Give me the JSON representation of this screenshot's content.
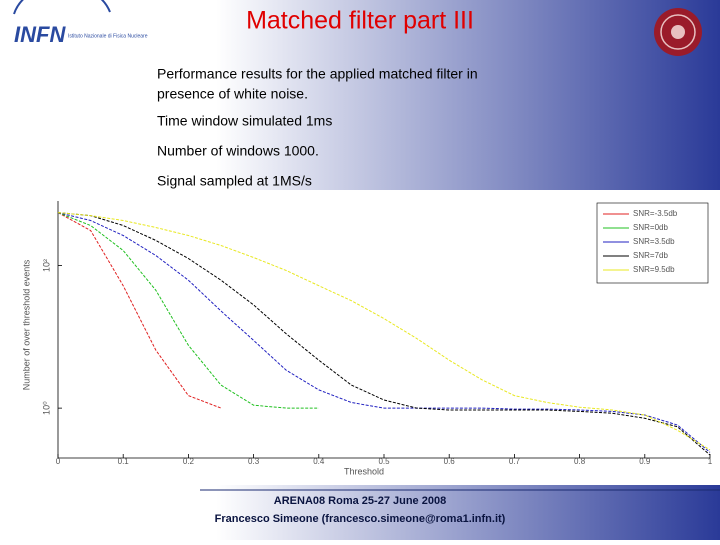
{
  "header": {
    "title": "Matched filter part III",
    "logo_text": "INFN",
    "logo_subtext": "Istituto Nazionale di Fisica Nucleare"
  },
  "body": {
    "lines": [
      "Performance results for the applied matched filter in",
      "presence of white noise.",
      "Time window simulated 1ms",
      "Number of windows 1000.",
      "Signal sampled at 1MS/s"
    ]
  },
  "footer": {
    "lines": [
      "ARENA08 Roma 25-27 June 2008",
      "Francesco Simeone (francesco.simeone@roma1.infn.it)"
    ]
  },
  "chart_data": {
    "type": "line",
    "xlabel": "Threshold",
    "ylabel": "Number of over threshold events",
    "x": [
      0,
      0.05,
      0.1,
      0.15,
      0.2,
      0.25,
      0.3,
      0.35,
      0.4,
      0.45,
      0.5,
      0.55,
      0.6,
      0.65,
      0.7,
      0.75,
      0.8,
      0.85,
      0.9,
      0.95,
      1
    ],
    "xlim": [
      0,
      1
    ],
    "xticks": [
      0,
      0.1,
      0.2,
      0.3,
      0.4,
      0.5,
      0.6,
      0.7,
      0.8,
      0.9,
      1
    ],
    "ylim": [
      0.2,
      800
    ],
    "yscale": "log",
    "yticks": [
      {
        "value": 1,
        "label": "10⁰"
      },
      {
        "value": 100,
        "label": "10²"
      }
    ],
    "grid": false,
    "legend": "upper right",
    "series": [
      {
        "name": "SNR=-3.5db",
        "color": "#e02020",
        "values": [
          551,
          309,
          52,
          6.5,
          1.5,
          1,
          null,
          null,
          null,
          null,
          null,
          null,
          null,
          null,
          null,
          null,
          null,
          null,
          null,
          null,
          null
        ]
      },
      {
        "name": "SNR=0db",
        "color": "#20c020",
        "values": [
          551,
          363,
          162,
          45,
          7.6,
          2.1,
          1.1,
          1,
          1,
          null,
          null,
          null,
          null,
          null,
          null,
          null,
          null,
          null,
          null,
          null,
          null
        ]
      },
      {
        "name": "SNR=3.5db",
        "color": "#2020c0",
        "values": [
          551,
          426,
          263,
          138,
          62,
          23,
          8.9,
          3.4,
          1.8,
          1.2,
          1,
          1,
          1,
          1,
          0.97,
          0.97,
          0.94,
          0.9,
          0.8,
          0.58,
          0.24
        ]
      },
      {
        "name": "SNR=7db",
        "color": "#000000",
        "values": [
          551,
          500,
          363,
          224,
          125,
          62,
          28,
          11,
          4.7,
          2.1,
          1.3,
          1,
          0.94,
          0.94,
          0.94,
          0.94,
          0.9,
          0.85,
          0.72,
          0.55,
          0.22
        ]
      },
      {
        "name": "SNR=9.5db",
        "color": "#e8e820",
        "values": [
          551,
          500,
          426,
          340,
          263,
          190,
          129,
          85,
          52,
          32,
          18,
          9.5,
          4.7,
          2.5,
          1.5,
          1.2,
          1.03,
          0.94,
          0.8,
          0.49,
          0.26
        ]
      }
    ]
  }
}
